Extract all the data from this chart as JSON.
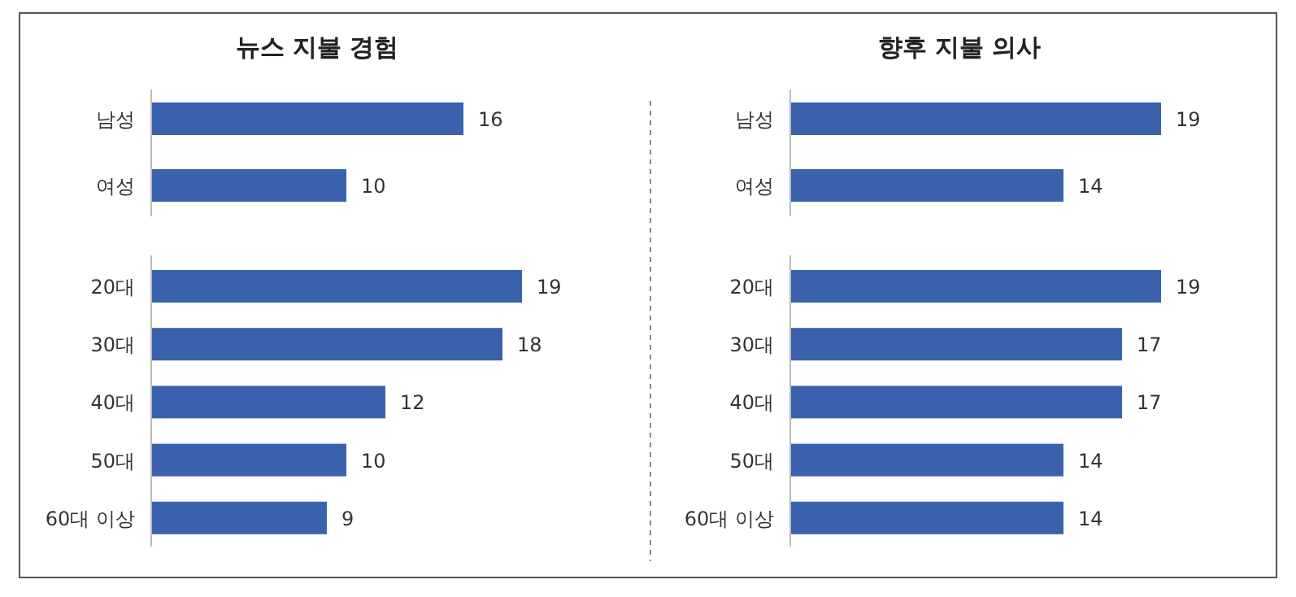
{
  "chart_data": [
    {
      "type": "bar",
      "orientation": "horizontal",
      "title": "뉴스 지불 경험",
      "categories": [
        "남성",
        "여성"
      ],
      "values": [
        16,
        10
      ],
      "color": "#3a62ad",
      "data_labels": true
    },
    {
      "type": "bar",
      "orientation": "horizontal",
      "categories": [
        "20대",
        "30대",
        "40대",
        "50대",
        "60대 이상"
      ],
      "values": [
        19,
        18,
        12,
        10,
        9
      ],
      "color": "#3a62ad",
      "data_labels": true
    },
    {
      "type": "bar",
      "orientation": "horizontal",
      "title": "향후 지불 의사",
      "categories": [
        "남성",
        "여성"
      ],
      "values": [
        19,
        14
      ],
      "color": "#3a62ad",
      "data_labels": true
    },
    {
      "type": "bar",
      "orientation": "horizontal",
      "categories": [
        "20대",
        "30대",
        "40대",
        "50대",
        "60대 이상"
      ],
      "values": [
        19,
        17,
        17,
        14,
        14
      ],
      "color": "#3a62ad",
      "data_labels": true
    }
  ]
}
